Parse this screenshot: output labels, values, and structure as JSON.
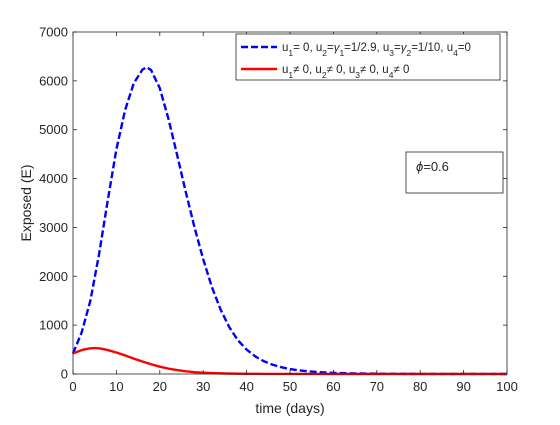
{
  "chart_data": {
    "type": "line",
    "xlabel": "time (days)",
    "ylabel": "Exposed (E)",
    "xlim": [
      0,
      100
    ],
    "ylim": [
      0,
      7000
    ],
    "x_ticks": [
      0,
      10,
      20,
      30,
      40,
      50,
      60,
      70,
      80,
      90,
      100
    ],
    "y_ticks": [
      0,
      1000,
      2000,
      3000,
      4000,
      5000,
      6000,
      7000
    ],
    "grid": false,
    "legend_position": "top-right",
    "annotation": {
      "symbol": "ϕ",
      "text": "=0.6"
    },
    "series": [
      {
        "name_parts": [
          {
            "t": "u"
          },
          {
            "t": "1",
            "sub": true
          },
          {
            "t": "= 0, u"
          },
          {
            "t": "2",
            "sub": true
          },
          {
            "t": "="
          },
          {
            "t": "γ",
            "greek": true
          },
          {
            "t": "1",
            "sub": true
          },
          {
            "t": "=1/2.9, u"
          },
          {
            "t": "3",
            "sub": true
          },
          {
            "t": "="
          },
          {
            "t": "γ",
            "greek": true
          },
          {
            "t": "2",
            "sub": true
          },
          {
            "t": "=1/10, u"
          },
          {
            "t": "4",
            "sub": true
          },
          {
            "t": "=0"
          }
        ],
        "color": "#0000ff",
        "style": "dashed",
        "x": [
          0,
          2,
          4,
          6,
          8,
          10,
          12,
          14,
          16,
          17,
          18,
          20,
          22,
          24,
          26,
          28,
          30,
          32,
          34,
          36,
          38,
          40,
          42,
          44,
          46,
          48,
          50,
          52,
          54,
          56,
          58,
          60,
          62,
          65,
          70,
          75,
          80,
          90,
          100
        ],
        "y": [
          420,
          850,
          1500,
          2450,
          3550,
          4600,
          5400,
          5950,
          6230,
          6280,
          6220,
          5850,
          5220,
          4480,
          3720,
          3000,
          2350,
          1780,
          1320,
          960,
          690,
          500,
          360,
          260,
          190,
          140,
          100,
          75,
          55,
          42,
          32,
          24,
          18,
          12,
          6,
          3,
          2,
          1,
          0
        ]
      },
      {
        "name_parts": [
          {
            "t": "u"
          },
          {
            "t": "1",
            "sub": true
          },
          {
            "t": "≠ 0, u"
          },
          {
            "t": "2",
            "sub": true
          },
          {
            "t": "≠ 0, u"
          },
          {
            "t": "3",
            "sub": true
          },
          {
            "t": "≠ 0, u"
          },
          {
            "t": "4",
            "sub": true
          },
          {
            "t": "≠ 0"
          }
        ],
        "color": "#ff0000",
        "style": "solid",
        "x": [
          0,
          1,
          2,
          3,
          4,
          5,
          6,
          7,
          8,
          10,
          12,
          14,
          16,
          18,
          20,
          22,
          24,
          26,
          28,
          30,
          32,
          35,
          40,
          45,
          50,
          60,
          70,
          80,
          90,
          100
        ],
        "y": [
          420,
          455,
          490,
          510,
          525,
          530,
          525,
          510,
          490,
          440,
          380,
          315,
          255,
          200,
          150,
          110,
          80,
          55,
          38,
          27,
          18,
          10,
          4,
          2,
          1,
          0,
          0,
          0,
          0,
          0
        ]
      }
    ]
  }
}
